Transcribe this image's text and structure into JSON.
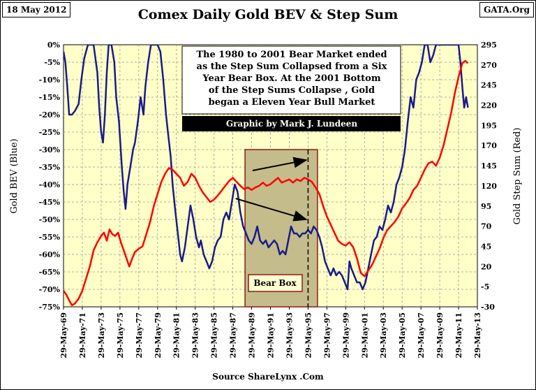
{
  "date_label": "18 May 2012",
  "source_label": "GATA.Org",
  "footer": "Source ShareLynx .Com",
  "annotation": {
    "lines": [
      "The 1980 to 2001 Bear Market ended",
      "as the Step Sum Collapsed from a Six",
      "Year Bear Box.  At the  2001 Bottom",
      "of the Step Sums Collapse , Gold",
      "began a Eleven Year Bull Market"
    ],
    "credit": "Graphic by Mark J. Lundeen"
  },
  "bear_box_label": "Bear Box",
  "colors": {
    "plot_bg": "#FFFFC8",
    "bev": "#1A1A8C",
    "step_sum": "#FF0000",
    "bear_box_fill": "#C4BC8A",
    "bear_box_border": "#8B1A1A",
    "credit_bg": "#000000"
  },
  "chart_data": {
    "type": "line",
    "title": "Comex Daily Gold BEV &  Step Sum",
    "ylabel_left": "Gold BEV (Blue)",
    "ylabel_right": "Gold Step Sum (Red)",
    "left_ticks": [
      "0%",
      "-5%",
      "-10%",
      "-15%",
      "-20%",
      "-25%",
      "-30%",
      "-35%",
      "-40%",
      "-45%",
      "-50%",
      "-55%",
      "-60%",
      "-65%",
      "-70%",
      "-75%"
    ],
    "right_ticks": [
      "295",
      "270",
      "245",
      "220",
      "195",
      "170",
      "145",
      "120",
      "95",
      "70",
      "45",
      "20",
      "-5",
      "-30"
    ],
    "left_range": [
      -75,
      0
    ],
    "right_range": [
      -30,
      295
    ],
    "x_range": [
      1969.4,
      2013.4
    ],
    "x_ticks": [
      "29-May-69",
      "29-May-71",
      "29-May-73",
      "29-May-75",
      "29-May-77",
      "29-May-79",
      "29-May-81",
      "29-May-83",
      "29-May-85",
      "29-May-87",
      "29-May-89",
      "29-May-91",
      "29-May-93",
      "29-May-95",
      "29-May-97",
      "29-May-99",
      "29-May-01",
      "29-May-03",
      "29-May-05",
      "29-May-07",
      "29-May-09",
      "29-May-11",
      "29-May-13"
    ],
    "series": [
      {
        "name": "Gold BEV (Blue)",
        "axis": "left",
        "points": [
          [
            1969.4,
            -2
          ],
          [
            1969.6,
            -5
          ],
          [
            1969.8,
            -12
          ],
          [
            1970.0,
            -20
          ],
          [
            1970.3,
            -20
          ],
          [
            1970.6,
            -19
          ],
          [
            1971.0,
            -17
          ],
          [
            1971.3,
            -10
          ],
          [
            1971.6,
            -4
          ],
          [
            1972.0,
            0
          ],
          [
            1972.3,
            0
          ],
          [
            1972.6,
            0
          ],
          [
            1973.0,
            -8
          ],
          [
            1973.2,
            -18
          ],
          [
            1973.4,
            -25
          ],
          [
            1973.6,
            -28
          ],
          [
            1973.8,
            -20
          ],
          [
            1974.0,
            -8
          ],
          [
            1974.2,
            0
          ],
          [
            1974.5,
            0
          ],
          [
            1974.8,
            -5
          ],
          [
            1975.0,
            -15
          ],
          [
            1975.3,
            -22
          ],
          [
            1975.6,
            -35
          ],
          [
            1975.8,
            -42
          ],
          [
            1976.0,
            -47
          ],
          [
            1976.2,
            -40
          ],
          [
            1976.5,
            -35
          ],
          [
            1976.8,
            -30
          ],
          [
            1977.0,
            -28
          ],
          [
            1977.3,
            -22
          ],
          [
            1977.6,
            -15
          ],
          [
            1977.9,
            -20
          ],
          [
            1978.1,
            -12
          ],
          [
            1978.4,
            -5
          ],
          [
            1978.7,
            0
          ],
          [
            1979.0,
            0
          ],
          [
            1979.4,
            0
          ],
          [
            1979.7,
            -2
          ],
          [
            1980.0,
            -10
          ],
          [
            1980.3,
            -20
          ],
          [
            1980.5,
            -25
          ],
          [
            1980.8,
            -32
          ],
          [
            1981.0,
            -40
          ],
          [
            1981.3,
            -48
          ],
          [
            1981.6,
            -55
          ],
          [
            1981.8,
            -60
          ],
          [
            1982.0,
            -62
          ],
          [
            1982.3,
            -58
          ],
          [
            1982.6,
            -52
          ],
          [
            1982.9,
            -46
          ],
          [
            1983.2,
            -50
          ],
          [
            1983.5,
            -55
          ],
          [
            1983.8,
            -58
          ],
          [
            1984.0,
            -56
          ],
          [
            1984.3,
            -60
          ],
          [
            1984.6,
            -62
          ],
          [
            1984.9,
            -64
          ],
          [
            1985.2,
            -62
          ],
          [
            1985.5,
            -58
          ],
          [
            1985.8,
            -56
          ],
          [
            1986.1,
            -55
          ],
          [
            1986.4,
            -50
          ],
          [
            1986.7,
            -48
          ],
          [
            1987.0,
            -50
          ],
          [
            1987.3,
            -45
          ],
          [
            1987.6,
            -40
          ],
          [
            1987.9,
            -42
          ],
          [
            1988.2,
            -48
          ],
          [
            1988.5,
            -52
          ],
          [
            1988.8,
            -54
          ],
          [
            1989.1,
            -56
          ],
          [
            1989.4,
            -57
          ],
          [
            1989.7,
            -55
          ],
          [
            1990.0,
            -52
          ],
          [
            1990.3,
            -56
          ],
          [
            1990.6,
            -57
          ],
          [
            1990.9,
            -56
          ],
          [
            1991.2,
            -58
          ],
          [
            1991.5,
            -57
          ],
          [
            1991.8,
            -56
          ],
          [
            1992.1,
            -57
          ],
          [
            1992.4,
            -60
          ],
          [
            1992.7,
            -59
          ],
          [
            1993.0,
            -60
          ],
          [
            1993.3,
            -56
          ],
          [
            1993.6,
            -52
          ],
          [
            1993.9,
            -54
          ],
          [
            1994.2,
            -54
          ],
          [
            1994.5,
            -55
          ],
          [
            1994.8,
            -54
          ],
          [
            1995.1,
            -54
          ],
          [
            1995.4,
            -53
          ],
          [
            1995.7,
            -54
          ],
          [
            1996.0,
            -52
          ],
          [
            1996.3,
            -53
          ],
          [
            1996.6,
            -55
          ],
          [
            1996.9,
            -58
          ],
          [
            1997.2,
            -62
          ],
          [
            1997.5,
            -64
          ],
          [
            1997.8,
            -66
          ],
          [
            1998.1,
            -64
          ],
          [
            1998.4,
            -66
          ],
          [
            1998.7,
            -65
          ],
          [
            1999.0,
            -66
          ],
          [
            1999.3,
            -68
          ],
          [
            1999.6,
            -70
          ],
          [
            1999.8,
            -62
          ],
          [
            2000.0,
            -64
          ],
          [
            2000.3,
            -66
          ],
          [
            2000.6,
            -68
          ],
          [
            2000.9,
            -68
          ],
          [
            2001.2,
            -70
          ],
          [
            2001.5,
            -68
          ],
          [
            2001.8,
            -64
          ],
          [
            2002.1,
            -60
          ],
          [
            2002.4,
            -56
          ],
          [
            2002.7,
            -55
          ],
          [
            2003.0,
            -52
          ],
          [
            2003.3,
            -53
          ],
          [
            2003.6,
            -50
          ],
          [
            2003.9,
            -46
          ],
          [
            2004.2,
            -48
          ],
          [
            2004.5,
            -45
          ],
          [
            2004.8,
            -40
          ],
          [
            2005.1,
            -38
          ],
          [
            2005.4,
            -35
          ],
          [
            2005.7,
            -30
          ],
          [
            2006.0,
            -22
          ],
          [
            2006.3,
            -15
          ],
          [
            2006.6,
            -18
          ],
          [
            2006.9,
            -10
          ],
          [
            2007.2,
            -8
          ],
          [
            2007.5,
            -5
          ],
          [
            2007.8,
            0
          ],
          [
            2008.1,
            0
          ],
          [
            2008.4,
            -5
          ],
          [
            2008.7,
            -3
          ],
          [
            2009.0,
            0
          ],
          [
            2009.3,
            0
          ],
          [
            2009.6,
            0
          ],
          [
            2009.9,
            0
          ],
          [
            2010.2,
            0
          ],
          [
            2010.5,
            0
          ],
          [
            2010.8,
            0
          ],
          [
            2011.1,
            0
          ],
          [
            2011.4,
            0
          ],
          [
            2011.6,
            -5
          ],
          [
            2011.8,
            -12
          ],
          [
            2012.0,
            -18
          ],
          [
            2012.2,
            -15
          ],
          [
            2012.4,
            -18
          ]
        ]
      },
      {
        "name": "Gold Step Sum (Red)",
        "axis": "right",
        "points": [
          [
            1969.4,
            -10
          ],
          [
            1969.7,
            -15
          ],
          [
            1970.0,
            -22
          ],
          [
            1970.3,
            -28
          ],
          [
            1970.6,
            -26
          ],
          [
            1971.0,
            -20
          ],
          [
            1971.4,
            -10
          ],
          [
            1971.8,
            5
          ],
          [
            1972.2,
            20
          ],
          [
            1972.6,
            40
          ],
          [
            1973.0,
            50
          ],
          [
            1973.4,
            58
          ],
          [
            1973.7,
            62
          ],
          [
            1974.0,
            52
          ],
          [
            1974.3,
            66
          ],
          [
            1974.6,
            60
          ],
          [
            1974.9,
            58
          ],
          [
            1975.2,
            62
          ],
          [
            1975.5,
            50
          ],
          [
            1975.8,
            40
          ],
          [
            1976.1,
            30
          ],
          [
            1976.4,
            20
          ],
          [
            1976.7,
            30
          ],
          [
            1977.0,
            38
          ],
          [
            1977.4,
            42
          ],
          [
            1977.8,
            45
          ],
          [
            1978.2,
            60
          ],
          [
            1978.6,
            75
          ],
          [
            1979.0,
            95
          ],
          [
            1979.4,
            110
          ],
          [
            1979.8,
            125
          ],
          [
            1980.2,
            135
          ],
          [
            1980.6,
            142
          ],
          [
            1981.0,
            140
          ],
          [
            1981.4,
            135
          ],
          [
            1981.8,
            130
          ],
          [
            1982.2,
            120
          ],
          [
            1982.6,
            125
          ],
          [
            1983.0,
            135
          ],
          [
            1983.4,
            130
          ],
          [
            1983.8,
            120
          ],
          [
            1984.2,
            112
          ],
          [
            1984.6,
            106
          ],
          [
            1985.0,
            100
          ],
          [
            1985.4,
            103
          ],
          [
            1985.8,
            108
          ],
          [
            1986.2,
            114
          ],
          [
            1986.6,
            120
          ],
          [
            1987.0,
            126
          ],
          [
            1987.4,
            130
          ],
          [
            1987.8,
            125
          ],
          [
            1988.2,
            120
          ],
          [
            1988.6,
            116
          ],
          [
            1989.0,
            118
          ],
          [
            1989.4,
            115
          ],
          [
            1989.8,
            118
          ],
          [
            1990.2,
            120
          ],
          [
            1990.6,
            124
          ],
          [
            1991.0,
            120
          ],
          [
            1991.4,
            122
          ],
          [
            1991.8,
            126
          ],
          [
            1992.2,
            130
          ],
          [
            1992.6,
            124
          ],
          [
            1993.0,
            126
          ],
          [
            1993.4,
            128
          ],
          [
            1993.8,
            124
          ],
          [
            1994.2,
            128
          ],
          [
            1994.6,
            126
          ],
          [
            1995.0,
            130
          ],
          [
            1995.4,
            128
          ],
          [
            1995.8,
            125
          ],
          [
            1996.2,
            118
          ],
          [
            1996.6,
            110
          ],
          [
            1997.0,
            95
          ],
          [
            1997.4,
            82
          ],
          [
            1997.8,
            72
          ],
          [
            1998.2,
            62
          ],
          [
            1998.6,
            52
          ],
          [
            1999.0,
            48
          ],
          [
            1999.4,
            46
          ],
          [
            1999.8,
            50
          ],
          [
            2000.2,
            44
          ],
          [
            2000.6,
            30
          ],
          [
            2001.0,
            12
          ],
          [
            2001.4,
            8
          ],
          [
            2001.8,
            15
          ],
          [
            2002.2,
            22
          ],
          [
            2002.6,
            32
          ],
          [
            2003.0,
            42
          ],
          [
            2003.4,
            55
          ],
          [
            2003.8,
            65
          ],
          [
            2004.2,
            70
          ],
          [
            2004.6,
            75
          ],
          [
            2005.0,
            82
          ],
          [
            2005.4,
            92
          ],
          [
            2005.8,
            98
          ],
          [
            2006.2,
            105
          ],
          [
            2006.6,
            115
          ],
          [
            2007.0,
            120
          ],
          [
            2007.4,
            130
          ],
          [
            2007.8,
            140
          ],
          [
            2008.2,
            148
          ],
          [
            2008.6,
            150
          ],
          [
            2009.0,
            145
          ],
          [
            2009.4,
            155
          ],
          [
            2009.8,
            170
          ],
          [
            2010.2,
            190
          ],
          [
            2010.6,
            210
          ],
          [
            2011.0,
            235
          ],
          [
            2011.4,
            255
          ],
          [
            2011.8,
            272
          ],
          [
            2012.1,
            275
          ],
          [
            2012.4,
            272
          ]
        ]
      }
    ],
    "bear_box": {
      "x": [
        1988.7,
        1996.4
      ],
      "y_left": [
        -75,
        -30
      ]
    },
    "dashed_line_x": 1995.4,
    "arrows": [
      {
        "from": [
          1989.5,
          -36
        ],
        "to": [
          1995.2,
          -33
        ]
      },
      {
        "from": [
          1987.7,
          -44
        ],
        "to": [
          1995.2,
          -50
        ]
      }
    ]
  }
}
